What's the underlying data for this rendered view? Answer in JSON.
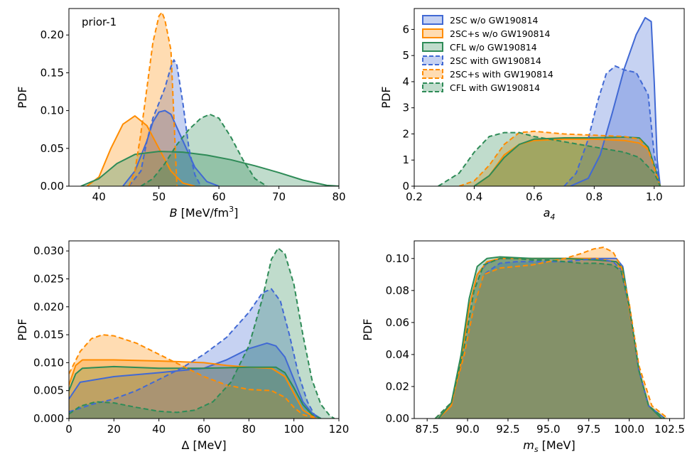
{
  "chart_data": [
    {
      "type": "area",
      "panel": "B",
      "annotation": "prior-1",
      "xlabel_prefix": "B",
      "xlabel_unit": " [MeV/fm",
      "xlabel_sup": "3",
      "xlabel_close": "]",
      "ylabel": "PDF",
      "xlim": [
        35,
        80
      ],
      "ylim": [
        0,
        0.235
      ],
      "xticks": [
        40,
        50,
        60,
        70,
        80
      ],
      "xtick_labels": [
        "40",
        "50",
        "60",
        "70",
        "80"
      ],
      "yticks": [
        0,
        0.05,
        0.1,
        0.15,
        0.2
      ],
      "ytick_labels": [
        "0.00",
        "0.05",
        "0.10",
        "0.15",
        "0.20"
      ],
      "series": [
        {
          "name": "2SC w/o GW190814",
          "color": "#4169d4",
          "dashed": false,
          "x": [
            44,
            46,
            48,
            49,
            50,
            51,
            52,
            54,
            56,
            58,
            60
          ],
          "y": [
            0,
            0.02,
            0.06,
            0.085,
            0.098,
            0.1,
            0.095,
            0.06,
            0.025,
            0.006,
            0
          ]
        },
        {
          "name": "2SC+s w/o GW190814",
          "color": "#ff8c00",
          "dashed": false,
          "x": [
            38,
            40,
            42,
            44,
            46,
            48,
            50,
            52,
            54,
            56
          ],
          "y": [
            0,
            0.012,
            0.05,
            0.082,
            0.093,
            0.08,
            0.05,
            0.02,
            0.004,
            0
          ]
        },
        {
          "name": "CFL w/o GW190814",
          "color": "#2e8b57",
          "dashed": false,
          "x": [
            37,
            40,
            43,
            46,
            50,
            54,
            58,
            62,
            66,
            70,
            74,
            78,
            80
          ],
          "y": [
            0,
            0.01,
            0.03,
            0.042,
            0.046,
            0.045,
            0.041,
            0.035,
            0.027,
            0.018,
            0.008,
            0.001,
            0
          ]
        },
        {
          "name": "2SC with GW190814",
          "color": "#4169d4",
          "dashed": true,
          "x": [
            45,
            47,
            48,
            49,
            50,
            51,
            52,
            52.5,
            53,
            54,
            55,
            56,
            57
          ],
          "y": [
            0,
            0.02,
            0.06,
            0.09,
            0.11,
            0.13,
            0.158,
            0.167,
            0.16,
            0.11,
            0.05,
            0.015,
            0
          ]
        },
        {
          "name": "2SC+s with GW190814",
          "color": "#ff8c00",
          "dashed": true,
          "x": [
            45,
            46,
            47,
            48,
            49,
            50,
            50.5,
            51,
            52,
            52.5,
            53
          ],
          "y": [
            0,
            0.02,
            0.07,
            0.13,
            0.19,
            0.225,
            0.23,
            0.22,
            0.18,
            0.09,
            0
          ]
        },
        {
          "name": "CFL with GW190814",
          "color": "#2e8b57",
          "dashed": true,
          "x": [
            47,
            49,
            51,
            53,
            55,
            57,
            58.5,
            60,
            62,
            64,
            66,
            68
          ],
          "y": [
            0,
            0.01,
            0.03,
            0.055,
            0.075,
            0.09,
            0.095,
            0.09,
            0.065,
            0.035,
            0.01,
            0
          ]
        }
      ]
    },
    {
      "type": "area",
      "panel": "a4",
      "xlabel_prefix": "a",
      "xlabel_sub": "4",
      "ylabel": "PDF",
      "xlim": [
        0.2,
        1.1
      ],
      "ylim": [
        0,
        6.8
      ],
      "xticks": [
        0.2,
        0.4,
        0.6,
        0.8,
        1.0
      ],
      "xtick_labels": [
        "0.2",
        "0.4",
        "0.6",
        "0.8",
        "1.0"
      ],
      "yticks": [
        0,
        1,
        2,
        3,
        4,
        5,
        6
      ],
      "ytick_labels": [
        "0",
        "1",
        "2",
        "3",
        "4",
        "5",
        "6"
      ],
      "legend_position": "top-left",
      "series": [
        {
          "name": "2SC w/o GW190814",
          "color": "#4169d4",
          "dashed": false,
          "x": [
            0.72,
            0.78,
            0.82,
            0.86,
            0.9,
            0.94,
            0.97,
            0.99,
            1.0,
            1.01,
            1.02
          ],
          "y": [
            0,
            0.3,
            1.2,
            2.8,
            4.5,
            5.8,
            6.45,
            6.3,
            4.0,
            1.0,
            0
          ]
        },
        {
          "name": "2SC+s w/o GW190814",
          "color": "#ff8c00",
          "dashed": false,
          "x": [
            0.4,
            0.45,
            0.5,
            0.55,
            0.6,
            0.7,
            0.8,
            0.9,
            0.95,
            0.98,
            1.0,
            1.02
          ],
          "y": [
            0,
            0.4,
            1.2,
            1.6,
            1.75,
            1.8,
            1.8,
            1.75,
            1.65,
            1.4,
            0.8,
            0
          ]
        },
        {
          "name": "CFL w/o GW190814",
          "color": "#2e8b57",
          "dashed": false,
          "x": [
            0.4,
            0.45,
            0.5,
            0.55,
            0.6,
            0.7,
            0.8,
            0.9,
            0.95,
            0.98,
            1.0,
            1.02
          ],
          "y": [
            0,
            0.4,
            1.1,
            1.6,
            1.8,
            1.85,
            1.85,
            1.88,
            1.85,
            1.5,
            0.8,
            0
          ]
        },
        {
          "name": "2SC with GW190814",
          "color": "#4169d4",
          "dashed": true,
          "x": [
            0.7,
            0.74,
            0.78,
            0.81,
            0.84,
            0.87,
            0.9,
            0.94,
            0.98,
            1.0,
            1.02
          ],
          "y": [
            0,
            0.5,
            1.8,
            3.2,
            4.3,
            4.6,
            4.45,
            4.35,
            3.5,
            1.2,
            0
          ]
        },
        {
          "name": "2SC+s with GW190814",
          "color": "#ff8c00",
          "dashed": true,
          "x": [
            0.35,
            0.4,
            0.45,
            0.5,
            0.55,
            0.6,
            0.7,
            0.8,
            0.9,
            0.95,
            0.98,
            1.0,
            1.02
          ],
          "y": [
            0,
            0.2,
            0.8,
            1.6,
            2.05,
            2.1,
            2.0,
            1.95,
            1.9,
            1.8,
            1.4,
            0.7,
            0
          ]
        },
        {
          "name": "CFL with GW190814",
          "color": "#2e8b57",
          "dashed": true,
          "x": [
            0.28,
            0.35,
            0.4,
            0.45,
            0.5,
            0.55,
            0.6,
            0.7,
            0.8,
            0.9,
            0.95,
            1.0,
            1.02
          ],
          "y": [
            0,
            0.5,
            1.3,
            1.9,
            2.05,
            2.05,
            1.9,
            1.7,
            1.5,
            1.3,
            1.1,
            0.5,
            0
          ]
        }
      ]
    },
    {
      "type": "area",
      "panel": "Delta",
      "xlabel_prefix": "Δ",
      "xlabel_unit": " [MeV]",
      "ylabel": "PDF",
      "xlim": [
        0,
        120
      ],
      "ylim": [
        0,
        0.0318
      ],
      "xticks": [
        0,
        20,
        40,
        60,
        80,
        100,
        120
      ],
      "xtick_labels": [
        "0",
        "20",
        "40",
        "60",
        "80",
        "100",
        "120"
      ],
      "yticks": [
        0,
        0.005,
        0.01,
        0.015,
        0.02,
        0.025,
        0.03
      ],
      "ytick_labels": [
        "0.000",
        "0.005",
        "0.010",
        "0.015",
        "0.020",
        "0.025",
        "0.030"
      ],
      "series": [
        {
          "name": "2SC w/o GW190814",
          "color": "#4169d4",
          "dashed": false,
          "x": [
            0,
            5,
            20,
            40,
            60,
            70,
            80,
            88,
            92,
            96,
            100,
            104,
            108,
            112
          ],
          "y": [
            0.0035,
            0.0065,
            0.0075,
            0.0082,
            0.009,
            0.0105,
            0.0125,
            0.0135,
            0.013,
            0.011,
            0.007,
            0.003,
            0.001,
            0
          ]
        },
        {
          "name": "2SC+s w/o GW190814",
          "color": "#ff8c00",
          "dashed": false,
          "x": [
            0,
            3,
            6,
            20,
            40,
            60,
            70,
            80,
            90,
            96,
            100,
            104,
            110
          ],
          "y": [
            0.006,
            0.0095,
            0.0105,
            0.0105,
            0.0103,
            0.01,
            0.0095,
            0.0092,
            0.009,
            0.0075,
            0.0045,
            0.0015,
            0
          ]
        },
        {
          "name": "CFL w/o GW190814",
          "color": "#2e8b57",
          "dashed": false,
          "x": [
            0,
            3,
            6,
            20,
            40,
            60,
            80,
            92,
            96,
            100,
            104,
            108,
            112
          ],
          "y": [
            0.005,
            0.008,
            0.009,
            0.0093,
            0.009,
            0.009,
            0.0092,
            0.0092,
            0.0082,
            0.0055,
            0.0025,
            0.0007,
            0
          ]
        },
        {
          "name": "2SC with GW190814",
          "color": "#4169d4",
          "dashed": true,
          "x": [
            0,
            10,
            20,
            30,
            40,
            50,
            60,
            70,
            80,
            86,
            90,
            94,
            98,
            102,
            106,
            110
          ],
          "y": [
            0.0012,
            0.0025,
            0.0035,
            0.005,
            0.007,
            0.009,
            0.0115,
            0.0145,
            0.019,
            0.0225,
            0.0232,
            0.021,
            0.015,
            0.008,
            0.003,
            0
          ]
        },
        {
          "name": "2SC+s with GW190814",
          "color": "#ff8c00",
          "dashed": true,
          "x": [
            0,
            5,
            10,
            15,
            20,
            30,
            40,
            50,
            60,
            70,
            80,
            90,
            96,
            100,
            104,
            110
          ],
          "y": [
            0.008,
            0.012,
            0.0143,
            0.015,
            0.0148,
            0.0135,
            0.0115,
            0.0095,
            0.0075,
            0.006,
            0.0052,
            0.005,
            0.0038,
            0.002,
            0.0007,
            0
          ]
        },
        {
          "name": "CFL with GW190814",
          "color": "#2e8b57",
          "dashed": true,
          "x": [
            0,
            5,
            12,
            20,
            30,
            40,
            48,
            56,
            64,
            72,
            80,
            86,
            90,
            93,
            96,
            100,
            104,
            108,
            112,
            116,
            118
          ],
          "y": [
            0.0008,
            0.0022,
            0.003,
            0.0028,
            0.002,
            0.0013,
            0.0011,
            0.0015,
            0.003,
            0.0065,
            0.013,
            0.0215,
            0.0285,
            0.0305,
            0.0295,
            0.024,
            0.015,
            0.007,
            0.0025,
            0.0005,
            0
          ]
        }
      ]
    },
    {
      "type": "area",
      "panel": "ms",
      "xlabel_prefix": "m",
      "xlabel_sub": "s",
      "xlabel_unit": " [MeV]",
      "ylabel": "PDF",
      "xlim": [
        86.7,
        103.4
      ],
      "ylim": [
        0,
        0.111
      ],
      "xticks": [
        87.5,
        90,
        92.5,
        95,
        97.5,
        100,
        102.5
      ],
      "xtick_labels": [
        "87.5",
        "90.0",
        "92.5",
        "95.0",
        "97.5",
        "100.0",
        "102.5"
      ],
      "yticks": [
        0,
        0.02,
        0.04,
        0.06,
        0.08,
        0.1
      ],
      "ytick_labels": [
        "0.00",
        "0.02",
        "0.04",
        "0.06",
        "0.08",
        "0.10"
      ],
      "series": [
        {
          "name": "2SC w/o GW190814",
          "color": "#4169d4",
          "dashed": false,
          "x": [
            88.2,
            89,
            89.6,
            90.1,
            90.6,
            91.2,
            92,
            94,
            96,
            98,
            99.2,
            99.6,
            100,
            100.6,
            101.2,
            102
          ],
          "y": [
            0,
            0.008,
            0.035,
            0.07,
            0.09,
            0.097,
            0.1,
            0.1,
            0.1,
            0.1,
            0.1,
            0.095,
            0.07,
            0.03,
            0.008,
            0
          ]
        },
        {
          "name": "2SC+s w/o GW190814",
          "color": "#ff8c00",
          "dashed": false,
          "x": [
            88.2,
            89,
            89.6,
            90.1,
            90.6,
            91.2,
            92,
            94,
            96,
            98,
            99.2,
            99.6,
            100,
            100.6,
            101.2,
            102
          ],
          "y": [
            0,
            0.008,
            0.035,
            0.07,
            0.09,
            0.098,
            0.1,
            0.1,
            0.1,
            0.1,
            0.098,
            0.092,
            0.068,
            0.03,
            0.008,
            0
          ]
        },
        {
          "name": "CFL w/o GW190814",
          "color": "#2e8b57",
          "dashed": false,
          "x": [
            88.2,
            89,
            89.6,
            90.1,
            90.6,
            91.2,
            92,
            94,
            96,
            98,
            99.2,
            99.6,
            100,
            100.6,
            101.2,
            102
          ],
          "y": [
            0,
            0.01,
            0.04,
            0.075,
            0.095,
            0.1,
            0.101,
            0.1,
            0.1,
            0.099,
            0.098,
            0.094,
            0.07,
            0.03,
            0.008,
            0
          ]
        },
        {
          "name": "2SC with GW190814",
          "color": "#4169d4",
          "dashed": true,
          "x": [
            88,
            89,
            89.8,
            90.4,
            91,
            92,
            93,
            94,
            95,
            96,
            97,
            98,
            99,
            99.5,
            100,
            100.6,
            101.2,
            102.2
          ],
          "y": [
            0,
            0.01,
            0.04,
            0.07,
            0.09,
            0.097,
            0.098,
            0.098,
            0.098,
            0.098,
            0.099,
            0.1,
            0.098,
            0.093,
            0.07,
            0.03,
            0.008,
            0
          ]
        },
        {
          "name": "2SC+s with GW190814",
          "color": "#ff8c00",
          "dashed": true,
          "x": [
            88,
            89,
            89.8,
            90.4,
            91,
            92,
            93,
            94,
            95,
            96,
            97,
            97.8,
            98.4,
            99,
            99.5,
            100,
            100.6,
            101.4,
            102.4
          ],
          "y": [
            0,
            0.01,
            0.04,
            0.07,
            0.09,
            0.094,
            0.095,
            0.096,
            0.098,
            0.1,
            0.103,
            0.106,
            0.107,
            0.104,
            0.095,
            0.072,
            0.033,
            0.008,
            0
          ]
        },
        {
          "name": "CFL with GW190814",
          "color": "#2e8b57",
          "dashed": true,
          "x": [
            88,
            89,
            89.8,
            90.4,
            91,
            92,
            93,
            94,
            95,
            96,
            97,
            98,
            99,
            99.5,
            100,
            100.6,
            101.2,
            102.2
          ],
          "y": [
            0,
            0.01,
            0.045,
            0.08,
            0.096,
            0.1,
            0.1,
            0.099,
            0.099,
            0.098,
            0.097,
            0.097,
            0.096,
            0.092,
            0.07,
            0.03,
            0.008,
            0
          ]
        }
      ]
    }
  ]
}
